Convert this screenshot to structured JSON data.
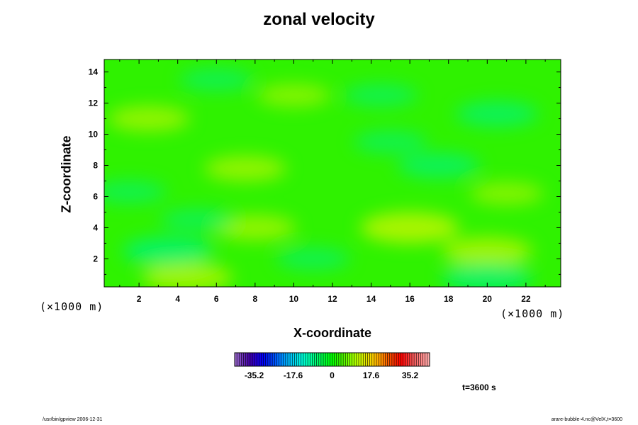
{
  "chart_data": {
    "type": "heatmap",
    "title": "zonal velocity",
    "xlabel": "X-coordinate",
    "ylabel": "Z-coordinate",
    "x_unit_label": "(×1000 m)",
    "xlim": [
      0.2,
      23.8
    ],
    "ylim": [
      0.2,
      14.8
    ],
    "x_ticks": [
      2,
      4,
      6,
      8,
      10,
      12,
      14,
      16,
      18,
      20,
      22
    ],
    "y_ticks": [
      2,
      4,
      6,
      8,
      10,
      12,
      14
    ],
    "colorbar": {
      "min": -44,
      "max": 44,
      "tick_values": [
        -35.2,
        -17.6,
        0,
        17.6,
        35.2
      ],
      "tick_labels": [
        "-35.2",
        "-17.6",
        "0",
        "17.6",
        "35.2"
      ],
      "colors": [
        "#9966cc",
        "#4400aa",
        "#0000ff",
        "#0066ff",
        "#00ccff",
        "#00ffcc",
        "#00ff66",
        "#00ff00",
        "#66ff00",
        "#ccff00",
        "#ffcc00",
        "#ff6600",
        "#ff0000",
        "#ff6666",
        "#ffaaaa"
      ]
    },
    "field_range": [
      -7,
      7
    ],
    "features": [
      {
        "x": 4.5,
        "z": 0.8,
        "value": 5
      },
      {
        "x": 8.0,
        "z": 4.0,
        "value": 4
      },
      {
        "x": 16.0,
        "z": 4.0,
        "value": 6
      },
      {
        "x": 20.0,
        "z": 2.5,
        "value": 5
      },
      {
        "x": 7.5,
        "z": 7.8,
        "value": 4
      },
      {
        "x": 21.0,
        "z": 6.2,
        "value": 3
      },
      {
        "x": 2.5,
        "z": 11.0,
        "value": 4
      },
      {
        "x": 10.0,
        "z": 12.5,
        "value": 3
      },
      {
        "x": 20.0,
        "z": 0.8,
        "value": -5
      },
      {
        "x": 3.5,
        "z": 2.5,
        "value": -5
      },
      {
        "x": 11.0,
        "z": 2.0,
        "value": -3
      },
      {
        "x": 20.5,
        "z": 11.3,
        "value": -4
      },
      {
        "x": 14.5,
        "z": 12.5,
        "value": -3
      },
      {
        "x": 5.0,
        "z": 4.5,
        "value": -3
      },
      {
        "x": 17.5,
        "z": 8.0,
        "value": -4
      },
      {
        "x": 15.0,
        "z": 9.5,
        "value": -3
      },
      {
        "x": 1.5,
        "z": 6.3,
        "value": -3
      },
      {
        "x": 6.0,
        "z": 13.5,
        "value": -3
      }
    ]
  },
  "annotations": {
    "time": "t=3600 s",
    "footer_left": "/usr/bin/gpview 2006-12-31",
    "footer_right": "arare-bubble-4.nc@VelX,t=3600"
  }
}
